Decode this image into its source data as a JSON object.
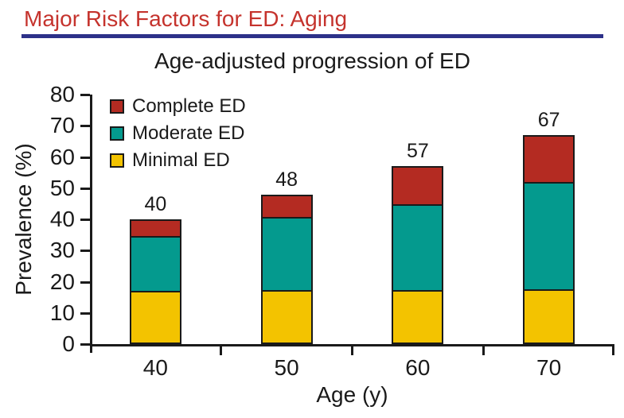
{
  "slide": {
    "heading": "Major Risk Factors for ED: Aging",
    "heading_color": "#C5332D",
    "rule_color": "#2D3189"
  },
  "chart_data": {
    "type": "bar",
    "stacked": true,
    "title": "Age-adjusted progression of ED",
    "xlabel": "Age (y)",
    "ylabel": "Prevalence (%)",
    "categories": [
      "40",
      "50",
      "60",
      "70"
    ],
    "series": [
      {
        "name": "Minimal ED",
        "color": "#F3C300",
        "values": [
          17,
          17,
          17,
          17
        ]
      },
      {
        "name": "Moderate ED",
        "color": "#049A8E",
        "values": [
          18,
          24,
          28,
          35
        ]
      },
      {
        "name": "Complete ED",
        "color": "#B42B22",
        "values": [
          5,
          7,
          12,
          15
        ]
      }
    ],
    "totals": [
      40,
      48,
      57,
      67
    ],
    "ylim": [
      0,
      80
    ],
    "y_ticks": [
      0,
      10,
      20,
      30,
      40,
      50,
      60,
      70,
      80
    ],
    "legend": [
      "Complete ED",
      "Moderate ED",
      "Minimal ED"
    ],
    "legend_position": "top-left-inside",
    "grid": false,
    "axis_color": "#1a1a1a",
    "bar_border_color": "#1a1a1a"
  }
}
